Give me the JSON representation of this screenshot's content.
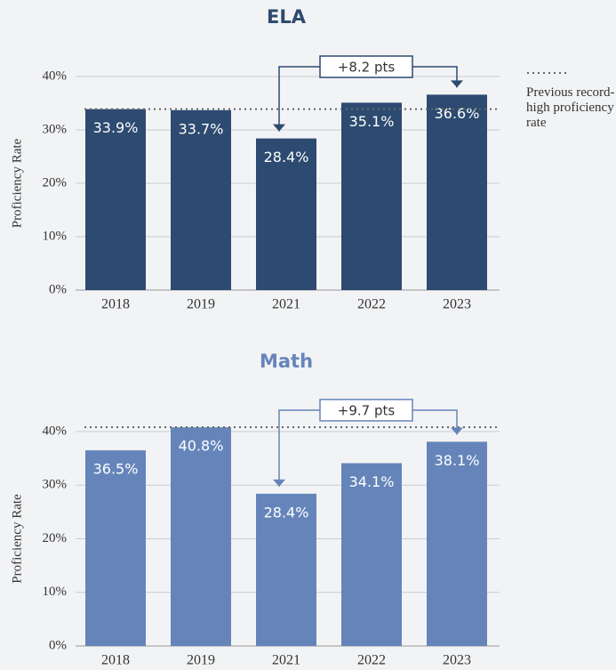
{
  "chart_data": [
    {
      "type": "bar",
      "title": "ELA",
      "y_label": "Proficiency Rate",
      "categories": [
        "2018",
        "2019",
        "2021",
        "2022",
        "2023"
      ],
      "values": [
        33.9,
        33.7,
        28.4,
        35.1,
        36.6
      ],
      "value_labels": [
        "33.9%",
        "33.7%",
        "28.4%",
        "35.1%",
        "36.6%"
      ],
      "color": "#2d4a70",
      "title_color": "#2d4a70",
      "ylim": [
        0,
        40
      ],
      "yticks": [
        {
          "value": 0,
          "label": "0%"
        },
        {
          "value": 10,
          "label": "10%"
        },
        {
          "value": 20,
          "label": "20%"
        },
        {
          "value": 30,
          "label": "30%"
        },
        {
          "value": 40,
          "label": "40%"
        }
      ],
      "grid": true,
      "reference_line": 33.9,
      "reference_label": "Previous record-high proficiency rate",
      "annotation": "+8.2 pts"
    },
    {
      "type": "bar",
      "title": "Math",
      "y_label": "Proficiency Rate",
      "categories": [
        "2018",
        "2019",
        "2021",
        "2022",
        "2023"
      ],
      "values": [
        36.5,
        40.8,
        28.4,
        34.1,
        38.1
      ],
      "value_labels": [
        "36.5%",
        "40.8%",
        "28.4%",
        "34.1%",
        "38.1%"
      ],
      "color": "#6585ba",
      "title_color": "#6585ba",
      "ylim": [
        0,
        40
      ],
      "yticks": [
        {
          "value": 0,
          "label": "0%"
        },
        {
          "value": 10,
          "label": "10%"
        },
        {
          "value": 20,
          "label": "20%"
        },
        {
          "value": 30,
          "label": "30%"
        },
        {
          "value": 40,
          "label": "40%"
        }
      ],
      "grid": true,
      "reference_line": 40.8,
      "annotation": "+9.7 pts"
    }
  ]
}
